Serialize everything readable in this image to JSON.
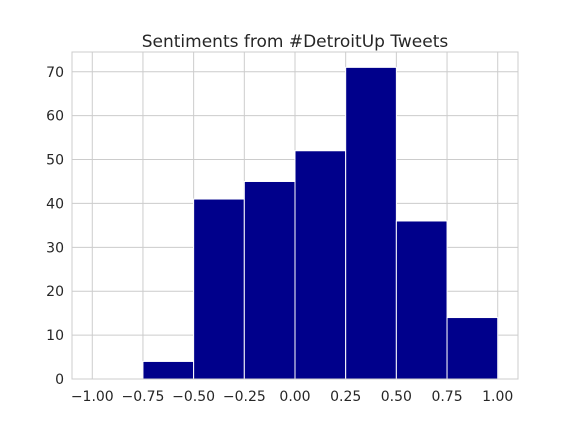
{
  "chart_data": {
    "type": "bar",
    "title": "Sentiments from #DetroitUp Tweets",
    "xlabel": "",
    "ylabel": "",
    "bins": [
      {
        "x0": -1.0,
        "x1": -0.75,
        "count": 0
      },
      {
        "x0": -0.75,
        "x1": -0.5,
        "count": 4
      },
      {
        "x0": -0.5,
        "x1": -0.25,
        "count": 41
      },
      {
        "x0": -0.25,
        "x1": 0.0,
        "count": 45
      },
      {
        "x0": 0.0,
        "x1": 0.25,
        "count": 52
      },
      {
        "x0": 0.25,
        "x1": 0.5,
        "count": 71
      },
      {
        "x0": 0.5,
        "x1": 0.75,
        "count": 36
      },
      {
        "x0": 0.75,
        "x1": 1.0,
        "count": 14
      }
    ],
    "xlim": [
      -1.1,
      1.1
    ],
    "ylim": [
      0,
      74.5
    ],
    "xticks": [
      -1.0,
      -0.75,
      -0.5,
      -0.25,
      0.0,
      0.25,
      0.5,
      0.75,
      1.0
    ],
    "xtick_labels": [
      "−1.00",
      "−0.75",
      "−0.50",
      "−0.25",
      "0.00",
      "0.25",
      "0.50",
      "0.75",
      "1.00"
    ],
    "yticks": [
      0,
      10,
      20,
      30,
      40,
      50,
      60,
      70
    ],
    "ytick_labels": [
      "0",
      "10",
      "20",
      "30",
      "40",
      "50",
      "60",
      "70"
    ],
    "grid": true,
    "colors": {
      "bar": "#00008b",
      "bar_edge": "#ffffff",
      "grid": "#cccccc",
      "axes_edge": "#cccccc",
      "text": "#262626"
    }
  }
}
